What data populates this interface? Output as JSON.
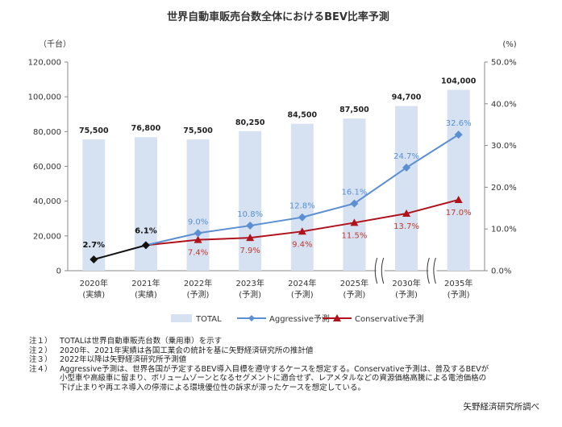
{
  "chart_data": {
    "type": "bar+line",
    "title": "世界自動車販売台数全体におけるBEV比率予測",
    "y_left_unit": "（千台）",
    "y_right_unit": "(%)",
    "y_left_ticks": [
      "0",
      "20,000",
      "40,000",
      "60,000",
      "80,000",
      "100,000",
      "120,000"
    ],
    "y_right_ticks": [
      "0.0%",
      "10.0%",
      "20.0%",
      "30.0%",
      "40.0%",
      "50.0%"
    ],
    "ylim_left": [
      0,
      120000
    ],
    "ylim_right": [
      0,
      50
    ],
    "categories": [
      {
        "year": "2020年",
        "sub": "(実績)"
      },
      {
        "year": "2021年",
        "sub": "(実績)"
      },
      {
        "year": "2022年",
        "sub": "(予測)"
      },
      {
        "year": "2023年",
        "sub": "(予測)"
      },
      {
        "year": "2024年",
        "sub": "(予測)"
      },
      {
        "year": "2025年",
        "sub": "(予測)"
      },
      {
        "year": "2030年",
        "sub": "(予測)"
      },
      {
        "year": "2035年",
        "sub": "(予測)"
      }
    ],
    "bars": {
      "name": "TOTAL",
      "values": [
        75500,
        76800,
        75500,
        80250,
        84500,
        87500,
        94700,
        104000
      ],
      "labels": [
        "75,500",
        "76,800",
        "75,500",
        "80,250",
        "84,500",
        "87,500",
        "94,700",
        "104,000"
      ],
      "color": "#d6e2f2"
    },
    "actual": {
      "values": [
        2.7,
        6.1
      ],
      "labels": [
        "2.7%",
        "6.1%"
      ],
      "color": "#111111"
    },
    "aggressive": {
      "name": "Aggressive予測",
      "values": [
        null,
        6.1,
        9.0,
        10.8,
        12.8,
        16.1,
        24.7,
        32.6
      ],
      "labels": [
        "",
        "",
        "9.0%",
        "10.8%",
        "12.8%",
        "16.1%",
        "24.7%",
        "32.6%"
      ],
      "color": "#5b8fd1"
    },
    "conservative": {
      "name": "Conservative予測",
      "values": [
        null,
        6.1,
        7.4,
        7.9,
        9.4,
        11.5,
        13.7,
        17.0
      ],
      "labels": [
        "",
        "",
        "7.4%",
        "7.9%",
        "9.4%",
        "11.5%",
        "13.7%",
        "17.0%"
      ],
      "color": "#b0121b"
    }
  },
  "notes": [
    {
      "key": "注１）",
      "text": "TOTALは世界自動車販売台数（乗用車）を示す"
    },
    {
      "key": "注２）",
      "text": "2020年、2021年実績は各国工業会の統計を基に矢野経済研究所の推計値"
    },
    {
      "key": "注３）",
      "text": "2022年以降は矢野経済研究所予測値"
    },
    {
      "key": "注４）",
      "text": "Aggressive予測は、世界各国が予定するBEV導入目標を遵守するケースを想定する。Conservative予測は、普及するBEVが"
    }
  ],
  "notes_cont": [
    "小型車や高級車に留まり、ボリュームゾーンとなるセグメントに適合せず、レアメタルなどの資源価格高騰による電池価格の",
    "下げ止まりや再エネ導入の停滞による環境優位性の訴求が滞ったケースを想定している。"
  ],
  "source": "矢野経済研究所調べ"
}
